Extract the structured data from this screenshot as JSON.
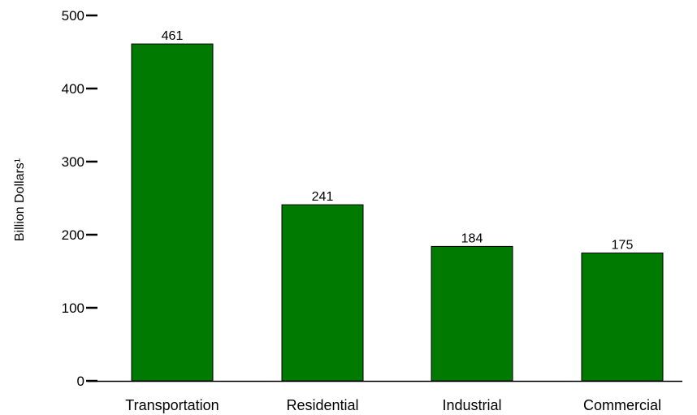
{
  "chart_data": {
    "type": "bar",
    "title": "",
    "xlabel": "",
    "ylabel": "Billion Dollars¹",
    "categories": [
      "Transportation",
      "Residential",
      "Industrial",
      "Commercial"
    ],
    "values": [
      461,
      241,
      184,
      175
    ],
    "data_labels": [
      "461",
      "241",
      "184",
      "175"
    ],
    "ylim": [
      0,
      500
    ],
    "yticks": [
      0,
      100,
      200,
      300,
      400,
      500
    ],
    "ytick_labels": [
      "0",
      "100",
      "200",
      "300",
      "400",
      "500"
    ],
    "grid": false,
    "legend": "none",
    "bar_color": "#007A00"
  }
}
